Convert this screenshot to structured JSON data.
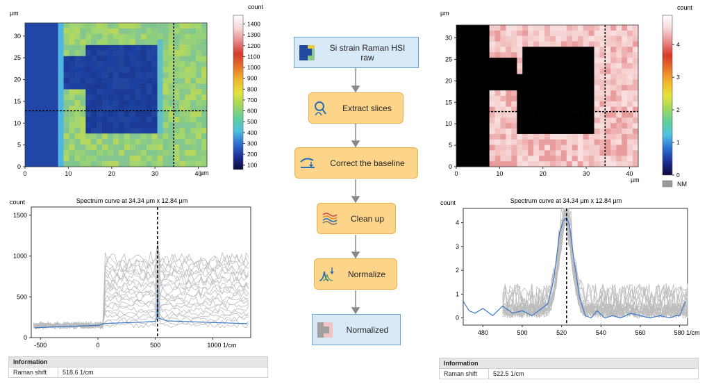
{
  "panels": {
    "left_map": {
      "y_unit": "µm",
      "x_unit": "µm",
      "colorbar_title": "count",
      "y_ticks": [
        "0",
        "5",
        "10",
        "15",
        "20",
        "25",
        "30"
      ],
      "x_ticks": [
        "0",
        "10",
        "20",
        "30",
        "40"
      ],
      "colorbar_ticks": [
        "100",
        "200",
        "300",
        "400",
        "500",
        "600",
        "700",
        "800",
        "900",
        "1000",
        "1100",
        "1200",
        "1300",
        "1400"
      ],
      "cross_x": 34.34,
      "cross_y": 12.84,
      "map": {
        "background": "#7fcf8a",
        "block": "#1b3f9c",
        "edge": "#52b9d6"
      }
    },
    "right_map": {
      "y_unit": "µm",
      "x_unit": "µm",
      "colorbar_title": "count",
      "y_ticks": [
        "0",
        "5",
        "10",
        "15",
        "20",
        "25",
        "30"
      ],
      "x_ticks": [
        "0",
        "10",
        "20",
        "30",
        "40"
      ],
      "colorbar_ticks": [
        "0",
        "1",
        "2",
        "3",
        "4"
      ],
      "nm_label": "NM",
      "nm_color": "#9a9a9a",
      "cross_x": 34.34,
      "cross_y": 12.84,
      "map": {
        "background": "#f3c7c7",
        "block": "#a0a0a0"
      }
    },
    "left_spectrum": {
      "title": "Spectrum curve at 34.34 µm x 12.84 µm",
      "y_unit": "count",
      "y_ticks": [
        "0",
        "500",
        "1000",
        "1500"
      ],
      "x_ticks": [
        "-500",
        "0",
        "500",
        "1000 1/cm"
      ],
      "cursor_x": 518.6,
      "series_color": "#3a78c9",
      "bundle_color": "#bcbcbc"
    },
    "right_spectrum": {
      "title": "Spectrum curve at 34.34 µm x 12.84 µm",
      "y_unit": "count",
      "y_ticks": [
        "0",
        "1",
        "2",
        "3",
        "4"
      ],
      "x_ticks": [
        "480",
        "500",
        "520",
        "540",
        "560",
        "580 1/cm"
      ],
      "cursor_x": 522.5,
      "series_color": "#3a78c9",
      "bundle_color": "#bcbcbc"
    }
  },
  "info_left": {
    "header": "Information",
    "key": "Raman shift",
    "value": "518.6 1/cm"
  },
  "info_right": {
    "header": "Information",
    "key": "Raman shift",
    "value": "522.5 1/cm"
  },
  "workflow": {
    "nodes": [
      {
        "label_line1": "Si strain Raman HSI",
        "label_line2": "raw",
        "kind": "data",
        "icon": "hsi-raw-icon"
      },
      {
        "label": "Extract slices",
        "kind": "operation",
        "icon": "extract-slices-icon"
      },
      {
        "label": "Correct the baseline",
        "kind": "operation",
        "icon": "baseline-icon"
      },
      {
        "label": "Clean up",
        "kind": "operation",
        "icon": "clean-up-icon"
      },
      {
        "label": "Normalize",
        "kind": "operation",
        "icon": "normalize-icon"
      },
      {
        "label": "Normalized",
        "kind": "data",
        "icon": "normalized-icon"
      }
    ]
  },
  "chart_data": [
    {
      "type": "line",
      "title": "Spectrum curve at 34.34 µm x 12.84 µm",
      "xlabel": "1/cm",
      "ylabel": "count",
      "xlim": [
        -580,
        1330
      ],
      "ylim": [
        0,
        1600
      ],
      "cursor": 518.6,
      "series": [
        {
          "x": [
            -550,
            -400,
            -200,
            0,
            40,
            60,
            100,
            200,
            300,
            400,
            500,
            515,
            520,
            525,
            600,
            700,
            800,
            900,
            1000,
            1100,
            1200,
            1300
          ],
          "values": [
            120,
            130,
            140,
            150,
            165,
            170,
            175,
            180,
            185,
            190,
            200,
            240,
            630,
            240,
            205,
            200,
            195,
            190,
            185,
            180,
            175,
            170
          ]
        }
      ]
    },
    {
      "type": "line",
      "title": "Spectrum curve at 34.34 µm x 12.84 µm",
      "xlabel": "1/cm",
      "ylabel": "count",
      "xlim": [
        470,
        584
      ],
      "ylim": [
        -0.3,
        4.6
      ],
      "cursor": 522.5,
      "series": [
        {
          "x": [
            470,
            473,
            476,
            480,
            485,
            490,
            495,
            500,
            505,
            510,
            513,
            516,
            519,
            521,
            522.5,
            524,
            526,
            529,
            532,
            535,
            538,
            542,
            546,
            550,
            555,
            560,
            565,
            570,
            575,
            578,
            580,
            583
          ],
          "values": [
            0.7,
            0.3,
            0.2,
            0.4,
            0.1,
            0.5,
            0.2,
            0.3,
            0.1,
            0.4,
            0.6,
            1.6,
            3.6,
            4.1,
            4.2,
            3.9,
            2.6,
            0.9,
            0.1,
            0.0,
            0.3,
            0.0,
            0.1,
            0.0,
            0.2,
            0.1,
            0.0,
            0.1,
            0.0,
            0.1,
            0.1,
            0.7
          ]
        }
      ]
    }
  ]
}
